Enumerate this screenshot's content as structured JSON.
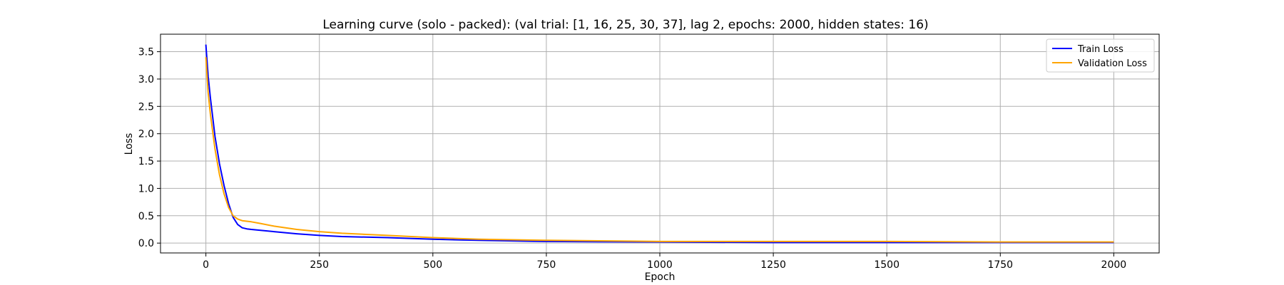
{
  "chart_data": {
    "type": "line",
    "title": "Learning curve (solo - packed): (val trial: [1, 16, 25, 30, 37], lag 2, epochs: 2000, hidden states: 16)",
    "xlabel": "Epoch",
    "ylabel": "Loss",
    "xlim": [
      -100,
      2100
    ],
    "ylim": [
      -0.18,
      3.82
    ],
    "xticks": [
      0,
      250,
      500,
      750,
      1000,
      1250,
      1500,
      1750,
      2000
    ],
    "yticks": [
      0.0,
      0.5,
      1.0,
      1.5,
      2.0,
      2.5,
      3.0,
      3.5
    ],
    "xtick_labels": [
      "0",
      "250",
      "500",
      "750",
      "1000",
      "1250",
      "1500",
      "1750",
      "2000"
    ],
    "ytick_labels": [
      "0.0",
      "0.5",
      "1.0",
      "1.5",
      "2.0",
      "2.5",
      "3.0",
      "3.5"
    ],
    "grid": true,
    "legend_position": "top-right",
    "series": [
      {
        "name": "Train Loss",
        "color": "#0000ff",
        "x": [
          0,
          5,
          10,
          20,
          30,
          40,
          50,
          60,
          70,
          80,
          90,
          100,
          150,
          200,
          250,
          300,
          400,
          500,
          600,
          750,
          1000,
          1250,
          1500,
          1750,
          2000
        ],
        "y": [
          3.63,
          3.05,
          2.65,
          1.95,
          1.45,
          1.05,
          0.72,
          0.47,
          0.34,
          0.28,
          0.26,
          0.25,
          0.21,
          0.17,
          0.14,
          0.12,
          0.1,
          0.07,
          0.05,
          0.03,
          0.02,
          0.01,
          0.01,
          0.01,
          0.01
        ]
      },
      {
        "name": "Validation Loss",
        "color": "#ffa500",
        "x": [
          0,
          5,
          10,
          20,
          30,
          40,
          50,
          60,
          70,
          80,
          90,
          100,
          120,
          150,
          200,
          250,
          300,
          400,
          500,
          600,
          750,
          1000,
          1250,
          1500,
          1750,
          2000
        ],
        "y": [
          3.4,
          2.75,
          2.35,
          1.72,
          1.25,
          0.9,
          0.65,
          0.5,
          0.44,
          0.41,
          0.4,
          0.39,
          0.36,
          0.31,
          0.25,
          0.21,
          0.18,
          0.14,
          0.1,
          0.07,
          0.05,
          0.03,
          0.03,
          0.03,
          0.02,
          0.02
        ]
      }
    ]
  }
}
